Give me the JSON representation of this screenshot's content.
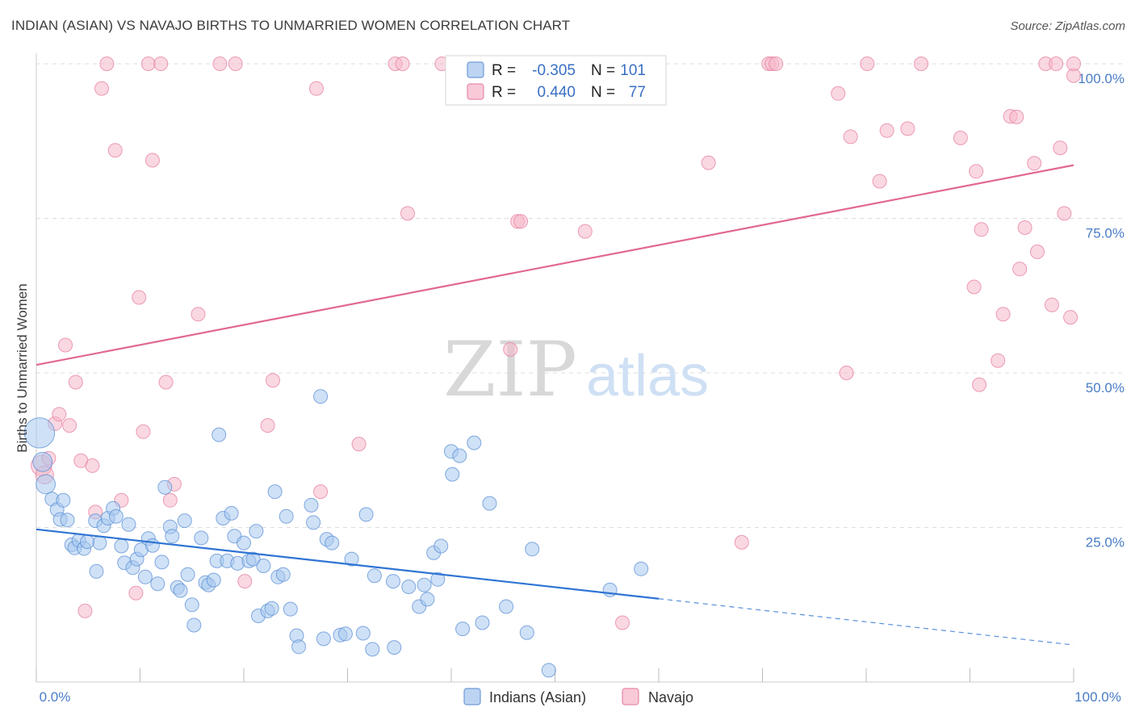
{
  "title": "INDIAN (ASIAN) VS NAVAJO BIRTHS TO UNMARRIED WOMEN CORRELATION CHART",
  "source": "Source: ZipAtlas.com",
  "watermark": {
    "zip": "ZIP",
    "atlas": "atlas"
  },
  "colors": {
    "blue_fill": "#a8c8ee",
    "blue_stroke": "#5b8fd6",
    "blue_line": "#2e74d4",
    "pink_fill": "#f5b8c9",
    "pink_stroke": "#e57ea0",
    "pink_line": "#e26890",
    "axis_label": "#4a7cc7",
    "grid": "#dddddd"
  },
  "legend": {
    "r_label": "R =",
    "n_label": "N =",
    "rows": [
      {
        "name": "Indians (Asian)",
        "r": "-0.305",
        "n": "101"
      },
      {
        "name": "Navajo",
        "r": "0.440",
        "n": "77"
      }
    ]
  },
  "chart_data": {
    "type": "scatter",
    "title": "INDIAN (ASIAN) VS NAVAJO BIRTHS TO UNMARRIED WOMEN CORRELATION CHART",
    "xlabel": "",
    "ylabel": "Births to Unmarried Women",
    "xlim": [
      0,
      100
    ],
    "ylim": [
      0,
      100
    ],
    "x_tick_labels": [
      "0.0%",
      "100.0%"
    ],
    "y_tick_labels": [
      "25.0%",
      "50.0%",
      "75.0%",
      "100.0%"
    ],
    "y_ticks": [
      25,
      50,
      75,
      100
    ],
    "grid": true,
    "legend_position": "bottom",
    "series": [
      {
        "name": "Indians (Asian)",
        "r": -0.305,
        "n": 101,
        "trend": {
          "y_at_0": 24.7,
          "y_at_100": 6.0,
          "solid_until_x": 60
        },
        "points": [
          [
            0.3,
            40.3,
            2.2
          ],
          [
            0.6,
            35.6,
            1.4
          ],
          [
            0.9,
            32.0,
            1.4
          ],
          [
            1.5,
            29.6,
            1
          ],
          [
            2.0,
            27.9,
            1
          ],
          [
            2.3,
            26.3,
            1
          ],
          [
            2.6,
            29.4,
            1
          ],
          [
            3.0,
            26.2,
            1
          ],
          [
            3.4,
            22.2,
            1
          ],
          [
            3.7,
            21.7,
            1
          ],
          [
            4.1,
            22.9,
            1
          ],
          [
            4.6,
            21.6,
            1
          ],
          [
            5.7,
            26.1,
            1
          ],
          [
            5.8,
            17.9,
            1
          ],
          [
            6.1,
            22.5,
            1
          ],
          [
            6.5,
            25.3,
            1
          ],
          [
            6.9,
            26.5,
            1
          ],
          [
            7.4,
            28.1,
            1
          ],
          [
            7.7,
            26.8,
            1
          ],
          [
            8.2,
            22.0,
            1
          ],
          [
            8.5,
            19.3,
            1
          ],
          [
            8.9,
            25.5,
            1
          ],
          [
            9.3,
            18.5,
            1
          ],
          [
            9.7,
            19.9,
            1
          ],
          [
            10.1,
            21.4,
            1
          ],
          [
            10.5,
            17.0,
            1
          ],
          [
            10.8,
            23.2,
            1
          ],
          [
            11.2,
            22.1,
            1
          ],
          [
            11.7,
            15.9,
            1
          ],
          [
            12.1,
            19.4,
            1
          ],
          [
            12.4,
            31.5,
            1
          ],
          [
            12.9,
            25.1,
            1
          ],
          [
            13.1,
            23.6,
            1
          ],
          [
            13.6,
            15.3,
            1
          ],
          [
            13.9,
            14.8,
            1
          ],
          [
            14.3,
            26.1,
            1
          ],
          [
            14.6,
            17.4,
            1
          ],
          [
            15.0,
            12.5,
            1
          ],
          [
            15.2,
            9.2,
            1
          ],
          [
            15.9,
            23.3,
            1
          ],
          [
            16.3,
            16.1,
            1
          ],
          [
            16.6,
            15.7,
            1
          ],
          [
            17.1,
            16.5,
            1
          ],
          [
            17.4,
            19.6,
            1
          ],
          [
            17.6,
            40.0,
            1
          ],
          [
            18.0,
            26.5,
            1
          ],
          [
            18.4,
            19.6,
            1
          ],
          [
            18.8,
            27.3,
            1
          ],
          [
            19.1,
            23.6,
            1
          ],
          [
            19.4,
            19.2,
            1
          ],
          [
            20.0,
            22.5,
            1
          ],
          [
            20.5,
            19.6,
            1
          ],
          [
            20.9,
            19.9,
            1
          ],
          [
            21.2,
            24.4,
            1
          ],
          [
            21.4,
            10.7,
            1
          ],
          [
            21.9,
            18.8,
            1
          ],
          [
            22.3,
            11.5,
            1
          ],
          [
            22.7,
            11.9,
            1
          ],
          [
            23.0,
            30.8,
            1
          ],
          [
            23.3,
            17.0,
            1
          ],
          [
            23.8,
            17.4,
            1
          ],
          [
            24.1,
            26.8,
            1
          ],
          [
            24.5,
            11.8,
            1
          ],
          [
            25.1,
            7.5,
            1
          ],
          [
            25.3,
            5.7,
            1
          ],
          [
            26.5,
            28.6,
            1
          ],
          [
            26.7,
            25.8,
            1
          ],
          [
            27.4,
            46.2,
            1
          ],
          [
            27.7,
            7.0,
            1
          ],
          [
            28.0,
            23.1,
            1
          ],
          [
            28.5,
            22.5,
            1
          ],
          [
            29.3,
            7.6,
            1
          ],
          [
            29.8,
            7.8,
            1
          ],
          [
            30.4,
            19.9,
            1
          ],
          [
            31.5,
            7.9,
            1
          ],
          [
            31.8,
            27.1,
            1
          ],
          [
            32.4,
            5.3,
            1
          ],
          [
            32.6,
            17.2,
            1
          ],
          [
            34.4,
            16.3,
            1
          ],
          [
            34.5,
            5.6,
            1
          ],
          [
            35.9,
            15.4,
            1
          ],
          [
            36.9,
            12.2,
            1
          ],
          [
            37.4,
            15.7,
            1
          ],
          [
            37.7,
            13.4,
            1
          ],
          [
            38.3,
            20.9,
            1
          ],
          [
            38.7,
            16.6,
            1
          ],
          [
            39.0,
            22.0,
            1
          ],
          [
            40.0,
            37.3,
            1
          ],
          [
            40.1,
            33.6,
            1
          ],
          [
            40.8,
            36.6,
            1
          ],
          [
            41.1,
            8.6,
            1
          ],
          [
            42.2,
            38.7,
            1
          ],
          [
            43.0,
            9.6,
            1
          ],
          [
            43.7,
            28.9,
            1
          ],
          [
            45.3,
            12.2,
            1
          ],
          [
            47.3,
            8.0,
            1
          ],
          [
            47.8,
            21.5,
            1
          ],
          [
            49.4,
            1.9,
            1
          ],
          [
            55.3,
            14.9,
            1
          ],
          [
            58.3,
            18.3,
            1
          ],
          [
            4.9,
            22.7,
            1
          ]
        ]
      },
      {
        "name": "Navajo",
        "r": 0.44,
        "n": 77,
        "trend": {
          "y_at_0": 51.3,
          "y_at_100": 83.6,
          "solid_until_x": 100
        },
        "points": [
          [
            0.5,
            35.0,
            1.5
          ],
          [
            0.8,
            33.5,
            1.3
          ],
          [
            1.2,
            36.2,
            1
          ],
          [
            1.8,
            41.8,
            1
          ],
          [
            2.2,
            43.3,
            1
          ],
          [
            2.8,
            54.5,
            1
          ],
          [
            3.2,
            41.5,
            1
          ],
          [
            3.8,
            48.5,
            1
          ],
          [
            4.3,
            35.8,
            1
          ],
          [
            4.7,
            11.5,
            1
          ],
          [
            5.4,
            35.0,
            1
          ],
          [
            5.7,
            27.5,
            1
          ],
          [
            6.3,
            96.0,
            1
          ],
          [
            6.8,
            100.0,
            1
          ],
          [
            7.6,
            86.0,
            1
          ],
          [
            8.2,
            29.4,
            1
          ],
          [
            9.6,
            14.4,
            1
          ],
          [
            9.9,
            62.2,
            1
          ],
          [
            10.3,
            40.5,
            1
          ],
          [
            10.8,
            100.0,
            1
          ],
          [
            11.2,
            84.4,
            1
          ],
          [
            12.0,
            100.0,
            1
          ],
          [
            12.5,
            48.5,
            1
          ],
          [
            12.9,
            29.4,
            1
          ],
          [
            13.3,
            32.0,
            1
          ],
          [
            15.6,
            59.5,
            1
          ],
          [
            17.7,
            100.0,
            1
          ],
          [
            19.2,
            100.0,
            1
          ],
          [
            20.1,
            16.3,
            1
          ],
          [
            22.3,
            41.5,
            1
          ],
          [
            22.8,
            48.8,
            1
          ],
          [
            27.0,
            96.0,
            1
          ],
          [
            27.4,
            30.8,
            1
          ],
          [
            31.1,
            38.5,
            1
          ],
          [
            34.6,
            100.0,
            1
          ],
          [
            35.3,
            100.0,
            1
          ],
          [
            35.8,
            75.8,
            1
          ],
          [
            39.1,
            100.0,
            1
          ],
          [
            45.7,
            53.8,
            1
          ],
          [
            46.4,
            74.5,
            1
          ],
          [
            46.7,
            74.5,
            1
          ],
          [
            52.9,
            72.9,
            1
          ],
          [
            56.5,
            9.6,
            1
          ],
          [
            64.8,
            84.0,
            1
          ],
          [
            68.0,
            22.6,
            1
          ],
          [
            70.6,
            100.0,
            1
          ],
          [
            70.9,
            100.0,
            1
          ],
          [
            71.3,
            100.0,
            1
          ],
          [
            77.3,
            95.2,
            1
          ],
          [
            78.1,
            50.0,
            1
          ],
          [
            78.5,
            88.2,
            1
          ],
          [
            80.1,
            100.0,
            1
          ],
          [
            81.3,
            81.0,
            1
          ],
          [
            82.0,
            89.2,
            1
          ],
          [
            84.0,
            89.5,
            1
          ],
          [
            85.3,
            100.0,
            1
          ],
          [
            89.1,
            88.0,
            1
          ],
          [
            90.4,
            63.9,
            1
          ],
          [
            90.6,
            82.6,
            1
          ],
          [
            90.9,
            48.1,
            1
          ],
          [
            91.1,
            73.2,
            1
          ],
          [
            92.7,
            52.0,
            1
          ],
          [
            93.2,
            59.5,
            1
          ],
          [
            93.9,
            91.5,
            1
          ],
          [
            94.5,
            91.4,
            1
          ],
          [
            94.8,
            66.8,
            1
          ],
          [
            95.3,
            73.5,
            1
          ],
          [
            96.2,
            83.9,
            1
          ],
          [
            96.5,
            69.6,
            1
          ],
          [
            97.3,
            100.0,
            1
          ],
          [
            97.9,
            61.0,
            1
          ],
          [
            98.3,
            100.0,
            1
          ],
          [
            98.7,
            86.4,
            1
          ],
          [
            99.1,
            75.8,
            1
          ],
          [
            99.7,
            59.0,
            1
          ],
          [
            100.0,
            98.1,
            1
          ],
          [
            100.0,
            100.0,
            1
          ]
        ]
      }
    ]
  }
}
